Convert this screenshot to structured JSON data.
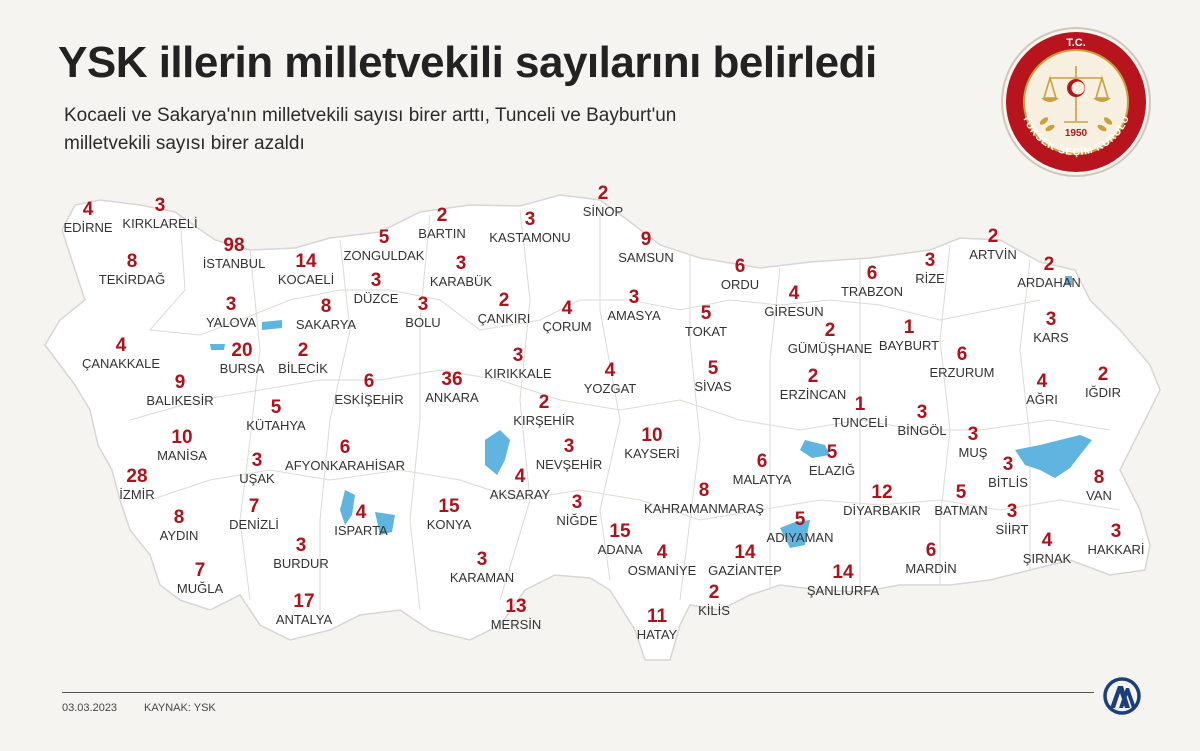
{
  "title": "YSK illerin milletvekili sayılarını belirledi",
  "subtitle": "Kocaeli ve Sakarya'nın milletvekili sayısı birer arttı, Tunceli ve Bayburt'un milletvekili sayısı birer azaldı",
  "seal": {
    "top_text": "T.C.",
    "bottom_text": "YÜKSEK SEÇİM KURULU",
    "year": "1950"
  },
  "colors": {
    "number": "#b0121b",
    "seal_ring": "#b8141e",
    "seal_gold": "#c9a13a",
    "land": "#ffffff",
    "lake": "#5fb4e0"
  },
  "footer": {
    "date": "03.03.2023",
    "source": "KAYNAK: YSK"
  },
  "provinces": [
    {
      "name": "EDİRNE",
      "seats": "4"
    },
    {
      "name": "KIRKLARELİ",
      "seats": "3"
    },
    {
      "name": "TEKİRDAĞ",
      "seats": "8"
    },
    {
      "name": "İSTANBUL",
      "seats": "98"
    },
    {
      "name": "KOCAELİ",
      "seats": "14"
    },
    {
      "name": "ZONGULDAK",
      "seats": "5"
    },
    {
      "name": "BARTIN",
      "seats": "2"
    },
    {
      "name": "KASTAMONU",
      "seats": "3"
    },
    {
      "name": "SİNOP",
      "seats": "2"
    },
    {
      "name": "SAMSUN",
      "seats": "9"
    },
    {
      "name": "ORDU",
      "seats": "6"
    },
    {
      "name": "TRABZON",
      "seats": "6"
    },
    {
      "name": "RİZE",
      "seats": "3"
    },
    {
      "name": "ARTVİN",
      "seats": "2"
    },
    {
      "name": "ARDAHAN",
      "seats": "2"
    },
    {
      "name": "KARS",
      "seats": "3"
    },
    {
      "name": "IĞDIR",
      "seats": "2"
    },
    {
      "name": "YALOVA",
      "seats": "3"
    },
    {
      "name": "SAKARYA",
      "seats": "8"
    },
    {
      "name": "DÜZCE",
      "seats": "3"
    },
    {
      "name": "KARABÜK",
      "seats": "3"
    },
    {
      "name": "BOLU",
      "seats": "3"
    },
    {
      "name": "ÇANKIRI",
      "seats": "2"
    },
    {
      "name": "ÇORUM",
      "seats": "4"
    },
    {
      "name": "AMASYA",
      "seats": "3"
    },
    {
      "name": "TOKAT",
      "seats": "5"
    },
    {
      "name": "GİRESUN",
      "seats": "4"
    },
    {
      "name": "GÜMÜŞHANE",
      "seats": "2"
    },
    {
      "name": "BAYBURT",
      "seats": "1"
    },
    {
      "name": "ERZURUM",
      "seats": "6"
    },
    {
      "name": "AĞRI",
      "seats": "4"
    },
    {
      "name": "ÇANAKKALE",
      "seats": "4"
    },
    {
      "name": "BURSA",
      "seats": "20"
    },
    {
      "name": "BİLECİK",
      "seats": "2"
    },
    {
      "name": "ESKİŞEHİR",
      "seats": "6"
    },
    {
      "name": "ANKARA",
      "seats": "36"
    },
    {
      "name": "KIRIKKALE",
      "seats": "3"
    },
    {
      "name": "YOZGAT",
      "seats": "4"
    },
    {
      "name": "SİVAS",
      "seats": "5"
    },
    {
      "name": "ERZİNCAN",
      "seats": "2"
    },
    {
      "name": "TUNCELİ",
      "seats": "1"
    },
    {
      "name": "BİNGÖL",
      "seats": "3"
    },
    {
      "name": "MUŞ",
      "seats": "3"
    },
    {
      "name": "BALIKESİR",
      "seats": "9"
    },
    {
      "name": "KÜTAHYA",
      "seats": "5"
    },
    {
      "name": "KIRŞEHİR",
      "seats": "2"
    },
    {
      "name": "NEVŞEHİR",
      "seats": "3"
    },
    {
      "name": "KAYSERİ",
      "seats": "10"
    },
    {
      "name": "MALATYA",
      "seats": "6"
    },
    {
      "name": "ELAZIĞ",
      "seats": "5"
    },
    {
      "name": "BİTLİS",
      "seats": "3"
    },
    {
      "name": "VAN",
      "seats": "8"
    },
    {
      "name": "MANİSA",
      "seats": "10"
    },
    {
      "name": "UŞAK",
      "seats": "3"
    },
    {
      "name": "AFYONKARAHİSAR",
      "seats": "6"
    },
    {
      "name": "AKSARAY",
      "seats": "4"
    },
    {
      "name": "İZMİR",
      "seats": "28"
    },
    {
      "name": "DENİZLİ",
      "seats": "7"
    },
    {
      "name": "ISPARTA",
      "seats": "4"
    },
    {
      "name": "KONYA",
      "seats": "15"
    },
    {
      "name": "NİĞDE",
      "seats": "3"
    },
    {
      "name": "KAHRAMANMARAŞ",
      "seats": "8"
    },
    {
      "name": "DİYARBAKIR",
      "seats": "12"
    },
    {
      "name": "BATMAN",
      "seats": "5"
    },
    {
      "name": "SİİRT",
      "seats": "3"
    },
    {
      "name": "AYDIN",
      "seats": "8"
    },
    {
      "name": "BURDUR",
      "seats": "3"
    },
    {
      "name": "ADANA",
      "seats": "15"
    },
    {
      "name": "ADIYAMAN",
      "seats": "5"
    },
    {
      "name": "HAKKARİ",
      "seats": "3"
    },
    {
      "name": "ŞIRNAK",
      "seats": "4"
    },
    {
      "name": "MUĞLA",
      "seats": "7"
    },
    {
      "name": "KARAMAN",
      "seats": "3"
    },
    {
      "name": "OSMANİYE",
      "seats": "4"
    },
    {
      "name": "GAZİANTEP",
      "seats": "14"
    },
    {
      "name": "ŞANLIURFA",
      "seats": "14"
    },
    {
      "name": "MARDİN",
      "seats": "6"
    },
    {
      "name": "ANTALYA",
      "seats": "17"
    },
    {
      "name": "MERSİN",
      "seats": "13"
    },
    {
      "name": "KİLİS",
      "seats": "2"
    },
    {
      "name": "HATAY",
      "seats": "11"
    }
  ]
}
